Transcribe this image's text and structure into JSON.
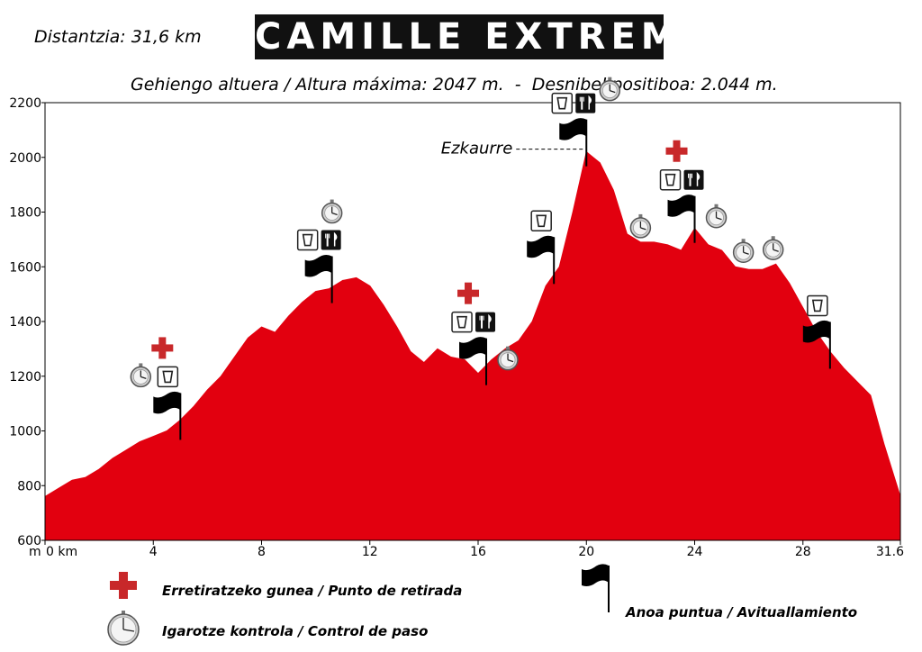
{
  "header": {
    "distance": "Distantzia: 31,6 km",
    "logo": "CAMILLE EXTREME",
    "subtitle": "Gehiengo altuera / Altura máxima: 2047 m.  -  Desnibel positiboa: 2.044 m."
  },
  "legend": {
    "withdrawal": "Erretiratzeko gunea / Punto de retirada",
    "control": "Igarotze kontrola / Control de paso",
    "aid": "Anoa puntua / Avituallamiento"
  },
  "colors": {
    "profile_fill": "#e2000f",
    "cross": "#c8282a",
    "plot_border": "#000000"
  },
  "icons": [
    "cross-icon",
    "stopwatch-icon",
    "flag-icon",
    "cup-icon",
    "cutlery-icon"
  ],
  "chart_data": {
    "type": "area",
    "title": "",
    "xlabel": "",
    "ylabel": "",
    "x_unit_label": "m",
    "x_tick_labels": [
      "0 km",
      "4",
      "8",
      "12",
      "16",
      "20",
      "24",
      "28",
      "31.6"
    ],
    "x_ticks": [
      0,
      4,
      8,
      12,
      16,
      20,
      24,
      28,
      31.6
    ],
    "y_ticks": [
      600,
      800,
      1000,
      1200,
      1400,
      1600,
      1800,
      2000,
      2200
    ],
    "xlim": [
      0,
      31.6
    ],
    "ylim": [
      600,
      2200
    ],
    "grid": false,
    "series": [
      {
        "x": [
          0,
          0.5,
          1,
          1.5,
          2,
          2.5,
          3,
          3.5,
          4,
          4.5,
          5,
          5.5,
          6,
          6.5,
          7,
          7.5,
          8,
          8.5,
          9,
          9.5,
          10,
          10.5,
          11,
          11.5,
          12,
          12.5,
          13,
          13.5,
          14,
          14.5,
          15,
          15.5,
          16,
          16.5,
          17,
          17.5,
          18,
          18.5,
          19,
          19.5,
          20,
          20.5,
          21,
          21.5,
          22,
          22.5,
          23,
          23.5,
          24,
          24.5,
          25,
          25.5,
          26,
          26.5,
          27,
          27.5,
          28,
          28.5,
          29,
          29.5,
          30,
          30.5,
          31,
          31.6
        ],
        "y": [
          760,
          790,
          820,
          830,
          860,
          900,
          930,
          960,
          980,
          1000,
          1040,
          1090,
          1150,
          1200,
          1270,
          1340,
          1380,
          1360,
          1420,
          1470,
          1510,
          1520,
          1550,
          1560,
          1530,
          1460,
          1380,
          1290,
          1250,
          1300,
          1270,
          1260,
          1210,
          1260,
          1300,
          1330,
          1400,
          1530,
          1600,
          1800,
          2020,
          1980,
          1880,
          1720,
          1690,
          1690,
          1680,
          1660,
          1740,
          1680,
          1660,
          1600,
          1590,
          1590,
          1610,
          1540,
          1450,
          1360,
          1290,
          1230,
          1180,
          1130,
          950,
          760
        ]
      }
    ],
    "markers": [
      {
        "x": 5.0,
        "elevation": 1020,
        "items": [
          "aid",
          "water",
          "control",
          "withdrawal"
        ]
      },
      {
        "x": 10.6,
        "elevation": 1520,
        "items": [
          "aid",
          "water",
          "food",
          "control"
        ]
      },
      {
        "x": 16.3,
        "elevation": 1220,
        "items": [
          "aid",
          "water",
          "food",
          "control",
          "withdrawal"
        ]
      },
      {
        "x": 18.8,
        "elevation": 1590,
        "items": [
          "aid",
          "water"
        ]
      },
      {
        "x": 20.0,
        "elevation": 2020,
        "items": [
          "aid",
          "water",
          "food",
          "control"
        ]
      },
      {
        "x": 22.0,
        "elevation": 1690,
        "items": [
          "control"
        ]
      },
      {
        "x": 24.0,
        "elevation": 1740,
        "items": [
          "aid",
          "water",
          "food",
          "control",
          "withdrawal"
        ]
      },
      {
        "x": 25.8,
        "elevation": 1600,
        "items": [
          "control"
        ]
      },
      {
        "x": 26.9,
        "elevation": 1610,
        "items": [
          "control"
        ]
      },
      {
        "x": 29.0,
        "elevation": 1280,
        "items": [
          "aid",
          "water"
        ]
      }
    ],
    "annotations": [
      {
        "label": "Ezkaurre",
        "x": 20.0,
        "y": 2020
      }
    ]
  }
}
